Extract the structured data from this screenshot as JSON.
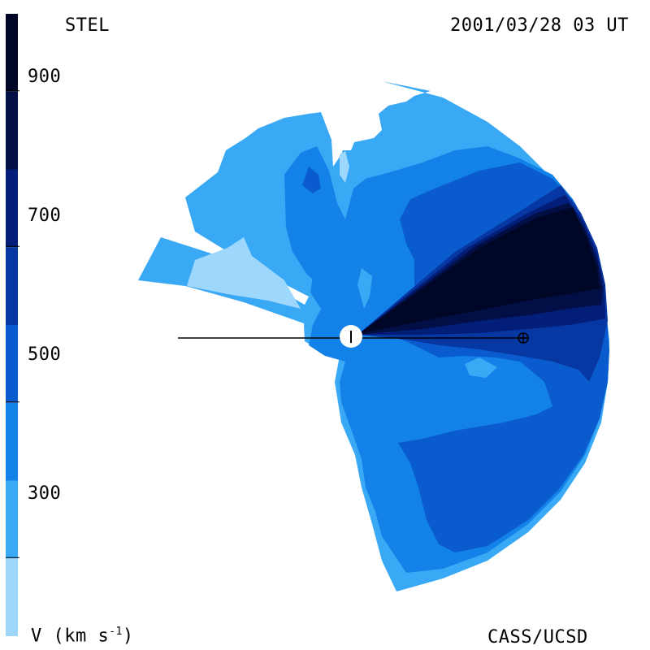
{
  "header": {
    "left_label": "STEL",
    "right_label": "2001/03/28 03 UT"
  },
  "footer": {
    "left_label": "V (km s",
    "left_label_sup": "-1",
    "left_label_close": ")",
    "right_label": "CASS/UCSD"
  },
  "colorbar": {
    "tick_labels": [
      "900",
      "700",
      "500",
      "300"
    ],
    "tick_values": [
      900,
      700,
      500,
      300
    ],
    "range": [
      200,
      1000
    ],
    "levels": [
      {
        "from": 200,
        "to": 300,
        "color": "#9ed7fc"
      },
      {
        "from": 300,
        "to": 400,
        "color": "#39a9f6"
      },
      {
        "from": 400,
        "to": 500,
        "color": "#1282e8"
      },
      {
        "from": 500,
        "to": 600,
        "color": "#0a5cce"
      },
      {
        "from": 600,
        "to": 700,
        "color": "#0737a3"
      },
      {
        "from": 700,
        "to": 800,
        "color": "#031e78"
      },
      {
        "from": 800,
        "to": 900,
        "color": "#020f47"
      },
      {
        "from": 900,
        "to": 1000,
        "color": "#000626"
      }
    ]
  },
  "colors": {
    "line": "#000000",
    "sun": "#ffffff"
  }
}
